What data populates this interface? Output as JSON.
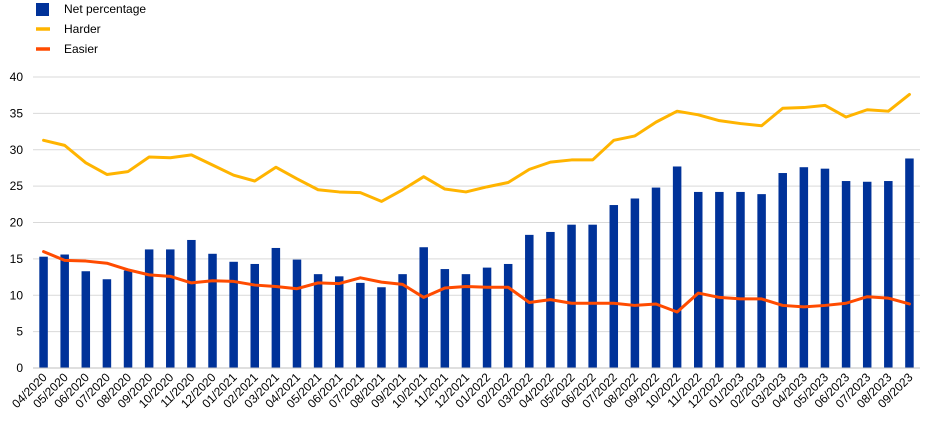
{
  "chart_data": {
    "type": "bar",
    "categories": [
      "04/2020",
      "05/2020",
      "06/2020",
      "07/2020",
      "08/2020",
      "09/2020",
      "10/2020",
      "11/2020",
      "12/2020",
      "01/2021",
      "02/2021",
      "03/2021",
      "04/2021",
      "05/2021",
      "06/2021",
      "07/2021",
      "08/2021",
      "09/2021",
      "10/2021",
      "11/2021",
      "12/2021",
      "01/2022",
      "02/2022",
      "03/2022",
      "04/2022",
      "05/2022",
      "06/2022",
      "07/2022",
      "08/2022",
      "09/2022",
      "10/2022",
      "11/2022",
      "12/2022",
      "01/2023",
      "02/2023",
      "03/2023",
      "04/2023",
      "05/2023",
      "06/2023",
      "07/2023",
      "08/2023",
      "09/2023"
    ],
    "series": [
      {
        "name": "Net percentage",
        "kind": "bar",
        "color": "#003299",
        "values": [
          15.3,
          15.6,
          13.3,
          12.2,
          13.4,
          16.3,
          16.3,
          17.6,
          15.7,
          14.6,
          14.3,
          16.5,
          14.9,
          12.9,
          12.6,
          11.7,
          11.1,
          12.9,
          16.6,
          13.6,
          12.9,
          13.8,
          14.3,
          18.3,
          18.7,
          19.7,
          19.7,
          22.4,
          23.3,
          24.8,
          27.7,
          24.2,
          24.2,
          24.2,
          23.9,
          26.8,
          27.6,
          27.4,
          25.7,
          25.6,
          25.7,
          28.8
        ]
      },
      {
        "name": "Harder",
        "kind": "line",
        "color": "#FFB400",
        "values": [
          31.3,
          30.6,
          28.2,
          26.6,
          27.0,
          29.0,
          28.9,
          29.3,
          27.9,
          26.5,
          25.7,
          27.6,
          26.0,
          24.5,
          24.2,
          24.1,
          22.9,
          24.5,
          26.3,
          24.6,
          24.2,
          24.9,
          25.5,
          27.3,
          28.3,
          28.6,
          28.6,
          31.3,
          31.9,
          33.8,
          35.3,
          34.8,
          34.0,
          33.6,
          33.3,
          35.7,
          35.8,
          36.1,
          34.5,
          35.5,
          35.3,
          37.6
        ]
      },
      {
        "name": "Easier",
        "kind": "line",
        "color": "#FF4B00",
        "values": [
          16.0,
          14.8,
          14.7,
          14.4,
          13.5,
          12.8,
          12.6,
          11.7,
          12.0,
          11.9,
          11.4,
          11.2,
          10.9,
          11.7,
          11.6,
          12.4,
          11.8,
          11.5,
          9.7,
          11.0,
          11.2,
          11.1,
          11.1,
          9.0,
          9.4,
          8.9,
          8.9,
          8.9,
          8.6,
          8.8,
          7.7,
          10.3,
          9.7,
          9.5,
          9.5,
          8.6,
          8.4,
          8.6,
          8.9,
          9.8,
          9.6,
          8.8
        ]
      }
    ],
    "ylim": [
      0,
      40
    ],
    "yticks": [
      0,
      5,
      10,
      15,
      20,
      25,
      30,
      35,
      40
    ],
    "title": "",
    "xlabel": "",
    "ylabel": "",
    "grid": true,
    "legend": "top-left"
  }
}
